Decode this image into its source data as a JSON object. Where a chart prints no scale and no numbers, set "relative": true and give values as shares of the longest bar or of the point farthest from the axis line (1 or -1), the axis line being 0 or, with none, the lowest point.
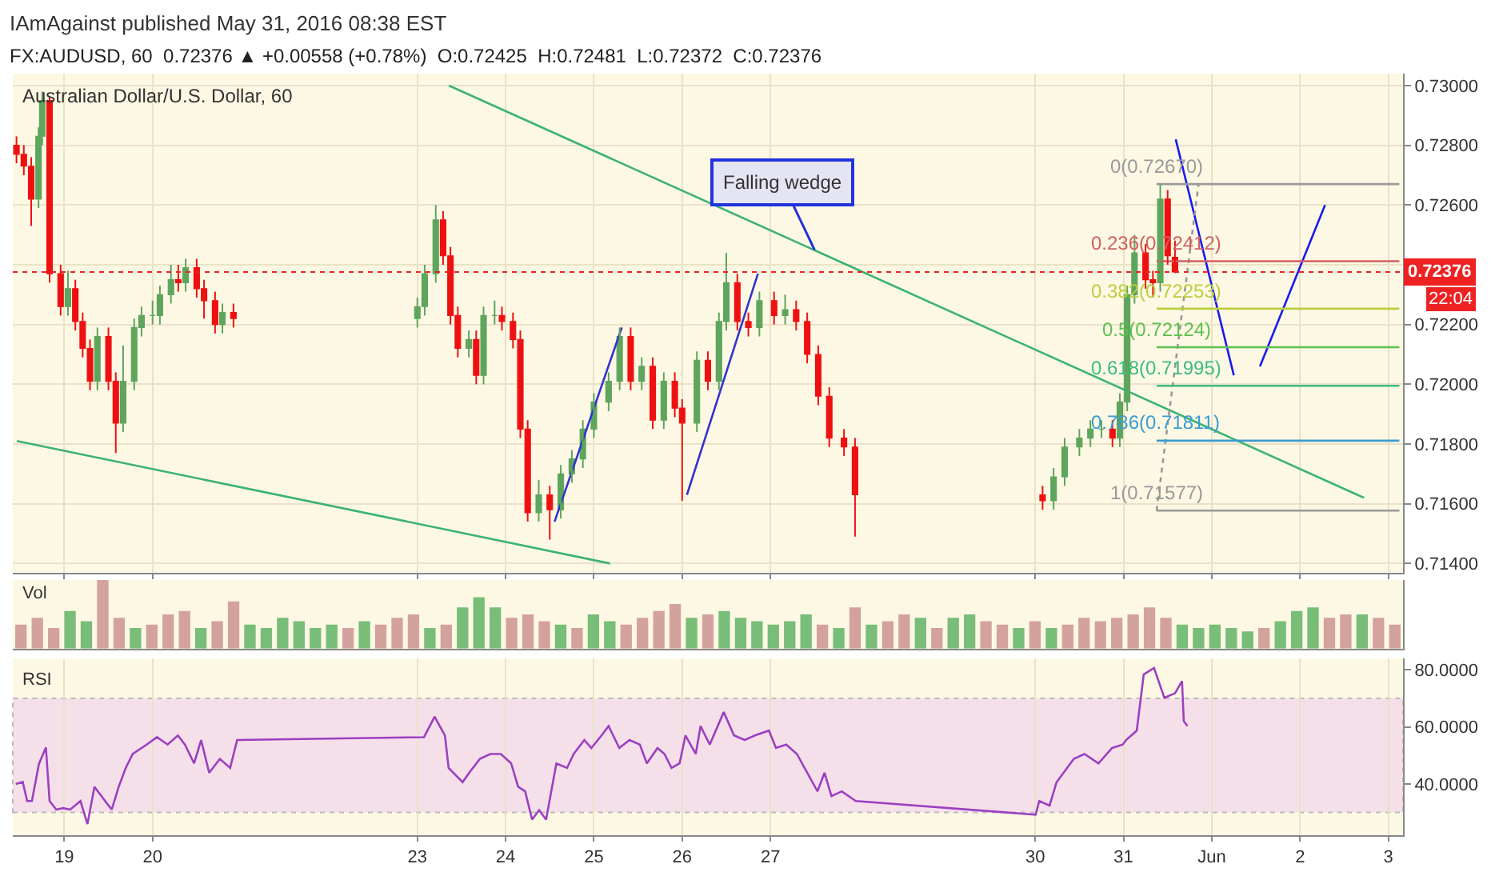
{
  "chart_data": [
    {
      "type": "candlestick",
      "title": "Australian Dollar/U.S. Dollar, 60",
      "annotations": [
        "IAmAgainst published May 31, 2016 08:38 EST",
        "FX:AUDUSD, 60  0.72376 ▲ +0.00558 (+0.78%)  O:0.72425  H:0.72481  L:0.72372  C:0.72376",
        "22:04",
        {
          "text": "Falling wedge",
          "x": "2016-05-27T12:00",
          "y": 0.7245
        }
      ],
      "x": [
        "2016-05-18T11:00",
        "2016-05-18T13:00",
        "2016-05-18T15:00",
        "2016-05-18T17:00",
        "2016-05-18T18:00",
        "2016-05-18T20:00",
        "2016-05-18T23:00",
        "2016-05-19T01:00",
        "2016-05-19T03:00",
        "2016-05-19T05:00",
        "2016-05-19T07:00",
        "2016-05-19T09:00",
        "2016-05-19T12:00",
        "2016-05-19T14:00",
        "2016-05-19T16:00",
        "2016-05-19T19:00",
        "2016-05-19T21:00",
        "2016-05-20T00:00",
        "2016-05-20T02:00",
        "2016-05-20T05:00",
        "2016-05-20T07:00",
        "2016-05-20T09:00",
        "2016-05-20T12:00",
        "2016-05-20T14:00",
        "2016-05-20T17:00",
        "2016-05-20T19:00",
        "2016-05-20T22:00",
        "2016-05-23T00:00",
        "2016-05-23T02:00",
        "2016-05-23T05:00",
        "2016-05-23T07:00",
        "2016-05-23T09:00",
        "2016-05-23T11:00",
        "2016-05-23T14:00",
        "2016-05-23T16:00",
        "2016-05-23T18:00",
        "2016-05-23T21:00",
        "2016-05-23T23:00",
        "2016-05-24T02:00",
        "2016-05-24T04:00",
        "2016-05-24T06:00",
        "2016-05-24T09:00",
        "2016-05-24T12:00",
        "2016-05-24T15:00",
        "2016-05-24T18:00",
        "2016-05-24T21:00",
        "2016-05-25T00:00",
        "2016-05-25T04:00",
        "2016-05-25T07:00",
        "2016-05-25T10:00",
        "2016-05-25T13:00",
        "2016-05-25T16:00",
        "2016-05-25T19:00",
        "2016-05-25T22:00",
        "2016-05-26T00:00",
        "2016-05-26T04:00",
        "2016-05-26T07:00",
        "2016-05-26T10:00",
        "2016-05-26T12:00",
        "2016-05-26T15:00",
        "2016-05-26T18:00",
        "2016-05-26T21:00",
        "2016-05-27T01:00",
        "2016-05-27T04:00",
        "2016-05-27T07:00",
        "2016-05-27T10:00",
        "2016-05-27T13:00",
        "2016-05-27T16:00",
        "2016-05-27T20:00",
        "2016-05-27T23:00",
        "2016-05-30T02:00",
        "2016-05-30T05:00",
        "2016-05-30T08:00",
        "2016-05-30T12:00",
        "2016-05-30T15:00",
        "2016-05-30T18:00",
        "2016-05-30T21:00",
        "2016-05-30T23:00",
        "2016-05-31T01:00",
        "2016-05-31T03:00",
        "2016-05-31T06:00",
        "2016-05-31T08:00",
        "2016-05-31T10:00",
        "2016-05-31T12:00",
        "2016-05-31T14:00"
      ],
      "ohlc": [
        [
          0.728,
          0.7283,
          0.7274,
          0.7277
        ],
        [
          0.7277,
          0.728,
          0.727,
          0.7273
        ],
        [
          0.7273,
          0.7276,
          0.7253,
          0.7262
        ],
        [
          0.7262,
          0.7286,
          0.7259,
          0.7283
        ],
        [
          0.7283,
          0.7298,
          0.728,
          0.7295
        ],
        [
          0.7295,
          0.7296,
          0.7234,
          0.7237
        ],
        [
          0.7237,
          0.724,
          0.7223,
          0.7226
        ],
        [
          0.7226,
          0.7238,
          0.7223,
          0.7232
        ],
        [
          0.7232,
          0.7235,
          0.7218,
          0.7221
        ],
        [
          0.7221,
          0.7224,
          0.7209,
          0.7212
        ],
        [
          0.7212,
          0.7215,
          0.7198,
          0.7201
        ],
        [
          0.7201,
          0.7219,
          0.7198,
          0.7216
        ],
        [
          0.7216,
          0.7219,
          0.7198,
          0.7201
        ],
        [
          0.7201,
          0.7204,
          0.7177,
          0.7187
        ],
        [
          0.7187,
          0.7213,
          0.7184,
          0.7201
        ],
        [
          0.7201,
          0.7222,
          0.7198,
          0.7219
        ],
        [
          0.7219,
          0.7226,
          0.7216,
          0.7223
        ],
        [
          0.7223,
          0.7228,
          0.722,
          0.7223
        ],
        [
          0.7223,
          0.7233,
          0.722,
          0.723
        ],
        [
          0.723,
          0.724,
          0.7227,
          0.7235
        ],
        [
          0.7235,
          0.724,
          0.7231,
          0.7234
        ],
        [
          0.7234,
          0.7242,
          0.7231,
          0.7239
        ],
        [
          0.7239,
          0.7242,
          0.7229,
          0.7232
        ],
        [
          0.7232,
          0.7235,
          0.7222,
          0.7228
        ],
        [
          0.7228,
          0.7231,
          0.7217,
          0.722
        ],
        [
          0.722,
          0.7227,
          0.7217,
          0.7224
        ],
        [
          0.7224,
          0.7227,
          0.7219,
          0.7222
        ],
        [
          0.7222,
          0.7229,
          0.7219,
          0.7226
        ],
        [
          0.7226,
          0.724,
          0.7223,
          0.7237
        ],
        [
          0.7237,
          0.726,
          0.7234,
          0.7255
        ],
        [
          0.7255,
          0.7258,
          0.724,
          0.7243
        ],
        [
          0.7243,
          0.7246,
          0.722,
          0.7223
        ],
        [
          0.7223,
          0.7226,
          0.7209,
          0.7212
        ],
        [
          0.7212,
          0.7218,
          0.7209,
          0.7215
        ],
        [
          0.7215,
          0.7218,
          0.72,
          0.7203
        ],
        [
          0.7203,
          0.7226,
          0.72,
          0.7223
        ],
        [
          0.7223,
          0.7228,
          0.722,
          0.7223
        ],
        [
          0.7223,
          0.7226,
          0.7218,
          0.7221
        ],
        [
          0.7221,
          0.7224,
          0.7212,
          0.7215
        ],
        [
          0.7215,
          0.7218,
          0.7182,
          0.7185
        ],
        [
          0.7185,
          0.7188,
          0.7154,
          0.7157
        ],
        [
          0.7157,
          0.7168,
          0.7154,
          0.7163
        ],
        [
          0.7163,
          0.7166,
          0.7148,
          0.7158
        ],
        [
          0.7158,
          0.7173,
          0.7155,
          0.717
        ],
        [
          0.717,
          0.7178,
          0.7167,
          0.7175
        ],
        [
          0.7175,
          0.7188,
          0.7172,
          0.7185
        ],
        [
          0.7185,
          0.7197,
          0.7182,
          0.7194
        ],
        [
          0.7194,
          0.7204,
          0.7191,
          0.7201
        ],
        [
          0.7201,
          0.7219,
          0.7198,
          0.7216
        ],
        [
          0.7216,
          0.7219,
          0.7198,
          0.7201
        ],
        [
          0.7201,
          0.7209,
          0.7198,
          0.7206
        ],
        [
          0.7206,
          0.7209,
          0.7185,
          0.7188
        ],
        [
          0.7188,
          0.7204,
          0.7185,
          0.7201
        ],
        [
          0.7201,
          0.7204,
          0.7189,
          0.7192
        ],
        [
          0.7192,
          0.7195,
          0.7161,
          0.7187
        ],
        [
          0.7187,
          0.7211,
          0.7184,
          0.7208
        ],
        [
          0.7208,
          0.7211,
          0.7198,
          0.7201
        ],
        [
          0.7201,
          0.7224,
          0.7198,
          0.7221
        ],
        [
          0.7221,
          0.7244,
          0.7218,
          0.7234
        ],
        [
          0.7234,
          0.7237,
          0.7218,
          0.7221
        ],
        [
          0.7221,
          0.7224,
          0.7216,
          0.7219
        ],
        [
          0.7219,
          0.7231,
          0.7216,
          0.7228
        ],
        [
          0.7228,
          0.7231,
          0.722,
          0.7223
        ],
        [
          0.7223,
          0.723,
          0.722,
          0.7225
        ],
        [
          0.7225,
          0.7228,
          0.7218,
          0.7221
        ],
        [
          0.7221,
          0.7224,
          0.7207,
          0.721
        ],
        [
          0.721,
          0.7213,
          0.7193,
          0.7196
        ],
        [
          0.7196,
          0.7199,
          0.7179,
          0.7182
        ],
        [
          0.7182,
          0.7185,
          0.7176,
          0.7179
        ],
        [
          0.7179,
          0.7182,
          0.7149,
          0.7163
        ],
        [
          0.7163,
          0.7166,
          0.7158,
          0.7161
        ],
        [
          0.7161,
          0.7172,
          0.7158,
          0.7169
        ],
        [
          0.7169,
          0.7182,
          0.7166,
          0.7179
        ],
        [
          0.7179,
          0.7185,
          0.7176,
          0.7182
        ],
        [
          0.7182,
          0.7188,
          0.7179,
          0.7185
        ],
        [
          0.7185,
          0.7188,
          0.7182,
          0.7185
        ],
        [
          0.7185,
          0.7188,
          0.7179,
          0.7182
        ],
        [
          0.7182,
          0.7197,
          0.7179,
          0.7194
        ],
        [
          0.7194,
          0.7233,
          0.7191,
          0.723
        ],
        [
          0.723,
          0.725,
          0.7227,
          0.7244
        ],
        [
          0.7244,
          0.7247,
          0.7232,
          0.7235
        ],
        [
          0.7235,
          0.7238,
          0.7229,
          0.7234
        ],
        [
          0.7234,
          0.7267,
          0.7231,
          0.7262
        ],
        [
          0.7262,
          0.7265,
          0.724,
          0.7243
        ],
        [
          0.72425,
          0.72481,
          0.72372,
          0.72376
        ]
      ],
      "series": [
        {
          "type": "line",
          "color": "#3cb371",
          "x": [
            "2016-05-23T08:36",
            "2016-06-02T17:24"
          ],
          "values": [
            0.73,
            0.7162
          ]
        },
        {
          "type": "line",
          "color": "#3cb371",
          "x": [
            "2016-05-18T11:06",
            "2016-05-25T04:24"
          ],
          "values": [
            0.7181,
            0.714
          ]
        },
        {
          "type": "line",
          "color": "#3333cc",
          "x": [
            "2016-05-24T13:18",
            "2016-05-25T07:36"
          ],
          "values": [
            0.7154,
            0.7219
          ]
        },
        {
          "type": "line",
          "color": "#3333cc",
          "x": [
            "2016-05-26T01:18",
            "2016-05-26T20:36"
          ],
          "values": [
            0.7163,
            0.7237
          ]
        },
        {
          "type": "line",
          "color": "#1a1aee",
          "x": [
            "2016-05-31T14:12",
            "2016-06-01T06:00"
          ],
          "values": [
            0.7282,
            0.7203
          ]
        },
        {
          "type": "line",
          "color": "#1a1aee",
          "x": [
            "2016-06-01T13:06",
            "2016-06-02T06:48"
          ],
          "values": [
            0.7206,
            0.726
          ]
        },
        {
          "type": "line",
          "color": "#999999",
          "line_style": "dotted",
          "x": [
            "2016-05-31T09:00",
            "2016-05-31T20:24"
          ],
          "values": [
            0.71577,
            0.7267
          ]
        },
        {
          "type": "line",
          "name": "0(0.72670)",
          "color": "#999999",
          "x": [
            "2016-05-31T09:00",
            "2016-06-03T03:00"
          ],
          "values": [
            0.7267,
            0.7267
          ]
        },
        {
          "type": "line",
          "name": "0.236(0.72412)",
          "color": "#d06060",
          "x": [
            "2016-05-31T09:00",
            "2016-06-03T03:00"
          ],
          "values": [
            0.72412,
            0.72412
          ]
        },
        {
          "type": "line",
          "name": "0.382(0.72253)",
          "color": "#b8d040",
          "x": [
            "2016-05-31T09:00",
            "2016-06-03T03:00"
          ],
          "values": [
            0.72253,
            0.72253
          ]
        },
        {
          "type": "line",
          "name": "0.5(0.72124)",
          "color": "#5cc050",
          "x": [
            "2016-05-31T09:00",
            "2016-06-03T03:00"
          ],
          "values": [
            0.72124,
            0.72124
          ]
        },
        {
          "type": "line",
          "name": "0.618(0.71995)",
          "color": "#3cbc80",
          "x": [
            "2016-05-31T09:00",
            "2016-06-03T03:00"
          ],
          "values": [
            0.71995,
            0.71995
          ]
        },
        {
          "type": "line",
          "name": "0.786(0.71811)",
          "color": "#3c9cd0",
          "x": [
            "2016-05-31T09:00",
            "2016-06-03T03:00"
          ],
          "values": [
            0.71811,
            0.71811
          ]
        },
        {
          "type": "line",
          "name": "1(0.71577)",
          "color": "#999999",
          "x": [
            "2016-05-31T09:00",
            "2016-06-03T03:00"
          ],
          "values": [
            0.71577,
            0.71577
          ]
        }
      ],
      "ref_lines": [
        {
          "axis": "y",
          "value": 0.72376,
          "label": "0.72376",
          "color": "#ee2222",
          "line_style": "dotted"
        }
      ],
      "xlim": [
        "2016-05-18T10:00",
        "2016-06-03T04:00"
      ],
      "xticks": [
        {
          "value": "2016-05-19",
          "label": null
        },
        {
          "value": "2016-05-20",
          "label": null
        },
        {
          "value": "2016-05-23",
          "label": null
        },
        {
          "value": "2016-05-24",
          "label": null
        },
        {
          "value": "2016-05-25",
          "label": null
        },
        {
          "value": "2016-05-26",
          "label": null
        },
        {
          "value": "2016-05-27",
          "label": null
        },
        {
          "value": "2016-05-30",
          "label": null
        },
        {
          "value": "2016-05-31",
          "label": null
        },
        {
          "value": "2016-06-01",
          "label": null
        },
        {
          "value": "2016-06-02",
          "label": null
        },
        {
          "value": "2016-06-03",
          "label": null
        }
      ],
      "ylim": [
        0.7137,
        0.7304
      ],
      "yticks": [
        {
          "value": 0.714,
          "label": "0.71400"
        },
        {
          "value": 0.716,
          "label": "0.71600"
        },
        {
          "value": 0.718,
          "label": "0.71800"
        },
        {
          "value": 0.72,
          "label": "0.72000"
        },
        {
          "value": 0.722,
          "label": "0.72200"
        },
        {
          "value": 0.724,
          "label": null
        },
        {
          "value": 0.726,
          "label": "0.72600"
        },
        {
          "value": 0.728,
          "label": "0.72800"
        },
        {
          "value": 0.73,
          "label": "0.73000"
        }
      ],
      "grid": true,
      "tick_labels": "y"
    },
    {
      "type": "bar",
      "title": "Vol",
      "relative": true,
      "tick_labels": false,
      "categories": [
        null,
        null,
        null,
        null,
        null,
        null,
        null,
        null,
        null,
        null,
        null,
        null,
        null,
        null,
        null,
        null,
        null,
        null,
        null,
        null,
        null,
        null,
        null,
        null,
        null,
        null,
        null,
        null,
        null,
        null,
        null,
        null,
        null,
        null,
        null,
        null,
        null,
        null,
        null,
        null,
        null,
        null,
        null,
        null,
        null,
        null,
        null,
        null,
        null,
        null,
        null,
        null,
        null,
        null,
        null,
        null,
        null,
        null,
        null,
        null,
        null,
        null,
        null,
        null,
        null,
        null,
        null,
        null,
        null,
        null,
        null,
        null,
        null,
        null,
        null,
        null,
        null,
        null,
        null,
        null,
        null,
        null,
        null,
        null,
        null
      ],
      "values": [
        0.35,
        0.45,
        0.3,
        0.55,
        0.4,
        1.0,
        0.45,
        0.3,
        0.35,
        0.5,
        0.55,
        0.3,
        0.4,
        0.69,
        0.35,
        0.3,
        0.45,
        0.4,
        0.3,
        0.35,
        0.3,
        0.4,
        0.35,
        0.45,
        0.5,
        0.3,
        0.35,
        0.6,
        0.75,
        0.6,
        0.45,
        0.5,
        0.4,
        0.35,
        0.3,
        0.5,
        0.4,
        0.35,
        0.45,
        0.55,
        0.65,
        0.45,
        0.5,
        0.55,
        0.45,
        0.4,
        0.35,
        0.4,
        0.5,
        0.35,
        0.3,
        0.6,
        0.35,
        0.4,
        0.5,
        0.45,
        0.3,
        0.45,
        0.5,
        0.4,
        0.35,
        0.3,
        0.4,
        0.3,
        0.35,
        0.45,
        0.4,
        0.45,
        0.5,
        0.6,
        0.45,
        0.35,
        0.3,
        0.35,
        0.3,
        0.25,
        0.3,
        0.4,
        0.55,
        0.6,
        0.45,
        0.5,
        0.5,
        0.45,
        0.35
      ],
      "colors": [
        "#d4a29c",
        "#d4a29c",
        "#d4a29c",
        "#78bd78",
        "#78bd78",
        "#d4a29c",
        "#d4a29c",
        "#78bd78",
        "#d4a29c",
        "#d4a29c",
        "#d4a29c",
        "#78bd78",
        "#d4a29c",
        "#d4a29c",
        "#78bd78",
        "#78bd78",
        "#78bd78",
        "#78bd78",
        "#78bd78",
        "#78bd78",
        "#d4a29c",
        "#78bd78",
        "#d4a29c",
        "#d4a29c",
        "#d4a29c",
        "#78bd78",
        "#d4a29c",
        "#78bd78",
        "#78bd78",
        "#78bd78",
        "#d4a29c",
        "#d4a29c",
        "#d4a29c",
        "#78bd78",
        "#d4a29c",
        "#78bd78",
        "#78bd78",
        "#d4a29c",
        "#d4a29c",
        "#d4a29c",
        "#d4a29c",
        "#78bd78",
        "#d4a29c",
        "#78bd78",
        "#78bd78",
        "#78bd78",
        "#78bd78",
        "#78bd78",
        "#78bd78",
        "#d4a29c",
        "#78bd78",
        "#d4a29c",
        "#78bd78",
        "#d4a29c",
        "#d4a29c",
        "#78bd78",
        "#d4a29c",
        "#78bd78",
        "#78bd78",
        "#d4a29c",
        "#d4a29c",
        "#78bd78",
        "#d4a29c",
        "#78bd78",
        "#d4a29c",
        "#d4a29c",
        "#d4a29c",
        "#d4a29c",
        "#d4a29c",
        "#d4a29c",
        "#d4a29c",
        "#78bd78",
        "#78bd78",
        "#78bd78",
        "#78bd78",
        "#78bd78",
        "#d4a29c",
        "#78bd78",
        "#78bd78",
        "#78bd78",
        "#d4a29c",
        "#d4a29c",
        "#78bd78",
        "#d4a29c",
        "#d4a29c"
      ]
    },
    {
      "type": "line",
      "title": "RSI",
      "series": [
        {
          "color": "#9c3fc0",
          "x": [
            "2016-05-18T10:48",
            "2016-05-18T12:42",
            "2016-05-18T13:54",
            "2016-05-18T15:12",
            "2016-05-18T17:06",
            "2016-05-18T19:00",
            "2016-05-18T20:00",
            "2016-05-18T21:48",
            "2016-05-18T23:42",
            "2016-05-19T01:36",
            "2016-05-19T04:24",
            "2016-05-19T06:18",
            "2016-05-19T08:12",
            "2016-05-19T11:06",
            "2016-05-19T12:54",
            "2016-05-19T14:48",
            "2016-05-19T16:42",
            "2016-05-19T18:36",
            "2016-05-19T22:24",
            "2016-05-20T01:12",
            "2016-05-20T04:06",
            "2016-05-20T06:54",
            "2016-05-20T08:48",
            "2016-05-20T11:18",
            "2016-05-20T13:12",
            "2016-05-20T15:24",
            "2016-05-20T18:18",
            "2016-05-20T21:06",
            "2016-05-20T23:00",
            "2016-05-23T01:48",
            "2016-05-23T04:42",
            "2016-05-23T07:30",
            "2016-05-23T08:30",
            "2016-05-23T12:18",
            "2016-05-23T14:06",
            "2016-05-23T17:00",
            "2016-05-23T19:48",
            "2016-05-23T22:42",
            "2016-05-24T01:30",
            "2016-05-24T03:24",
            "2016-05-24T05:18",
            "2016-05-24T07:12",
            "2016-05-24T09:06",
            "2016-05-24T11:00",
            "2016-05-24T13:48",
            "2016-05-24T16:42",
            "2016-05-24T18:30",
            "2016-05-24T21:24",
            "2016-05-24T23:18",
            "2016-05-25T02:06",
            "2016-05-25T04:00",
            "2016-05-25T06:54",
            "2016-05-25T09:42",
            "2016-05-25T12:30",
            "2016-05-25T14:24",
            "2016-05-25T17:18",
            "2016-05-25T19:12",
            "2016-05-25T21:06",
            "2016-05-25T23:18",
            "2016-05-26T00:54",
            "2016-05-26T03:42",
            "2016-05-26T05:00",
            "2016-05-26T07:30",
            "2016-05-26T11:18",
            "2016-05-26T14:06",
            "2016-05-26T17:00",
            "2016-05-26T19:48",
            "2016-05-26T23:36",
            "2016-05-27T01:30",
            "2016-05-27T04:18",
            "2016-05-27T07:12",
            "2016-05-27T10:00",
            "2016-05-27T12:48",
            "2016-05-27T14:42",
            "2016-05-27T16:36",
            "2016-05-27T19:24",
            "2016-05-27T23:12",
            "2016-05-30T00:06",
            "2016-05-30T01:06",
            "2016-05-30T03:54",
            "2016-05-30T05:48",
            "2016-05-30T07:42",
            "2016-05-30T10:30",
            "2016-05-30T13:24",
            "2016-05-30T17:12",
            "2016-05-30T20:54",
            "2016-05-30T23:48",
            "2016-05-31T00:42",
            "2016-05-31T03:36",
            "2016-05-31T05:30",
            "2016-05-31T08:18",
            "2016-05-31T11:06",
            "2016-05-31T14:00",
            "2016-05-31T15:54",
            "2016-05-31T16:24",
            "2016-05-31T17:24"
          ],
          "values": [
            40,
            40.7,
            34,
            34,
            47,
            52.8,
            34,
            31,
            31.5,
            31,
            34,
            25.9,
            39,
            34,
            31,
            39,
            45.6,
            50.5,
            53.8,
            56.4,
            53.8,
            57,
            53.8,
            47.2,
            55.4,
            43.9,
            48.8,
            45.6,
            55.4,
            56.4,
            63.6,
            57,
            45.6,
            40.6,
            43.9,
            48.8,
            50.5,
            50.5,
            47.2,
            39,
            37.4,
            27.5,
            30.8,
            27.5,
            47.2,
            45.6,
            50.5,
            55.4,
            52.6,
            57,
            60.3,
            52.6,
            55.4,
            53.8,
            47.2,
            52.6,
            50.5,
            45.6,
            47.2,
            57,
            50.5,
            60.3,
            53.8,
            65.2,
            57,
            55.4,
            57,
            58.7,
            52.6,
            53.8,
            50.5,
            43.9,
            37.4,
            43.9,
            35.7,
            37.4,
            34,
            29.2,
            34,
            32.4,
            40.6,
            43.9,
            48.8,
            50.5,
            47.2,
            52.6,
            53.8,
            55.4,
            58.7,
            78.4,
            80.7,
            70.2,
            71.8,
            76.1,
            62,
            60.3
          ]
        }
      ],
      "bands": [
        {
          "axis": "y",
          "from": 30,
          "to": 70,
          "color": "#f5e0ea"
        }
      ],
      "xlim": [
        "2016-05-18T10:00",
        "2016-06-03T04:00"
      ],
      "xticks": [
        {
          "value": "2016-05-19",
          "label": "19"
        },
        {
          "value": "2016-05-20",
          "label": "20"
        },
        {
          "value": "2016-05-23",
          "label": "23"
        },
        {
          "value": "2016-05-24",
          "label": "24"
        },
        {
          "value": "2016-05-25",
          "label": "25"
        },
        {
          "value": "2016-05-26",
          "label": "26"
        },
        {
          "value": "2016-05-27",
          "label": "27"
        },
        {
          "value": "2016-05-30",
          "label": "30"
        },
        {
          "value": "2016-05-31",
          "label": "31"
        },
        {
          "value": "2016-06-01",
          "label": "Jun"
        },
        {
          "value": "2016-06-02",
          "label": "2"
        },
        {
          "value": "2016-06-03",
          "label": "3"
        }
      ],
      "ylim": [
        22,
        84
      ],
      "yticks": [
        {
          "value": 40,
          "label": "40.0000"
        },
        {
          "value": 60,
          "label": "60.0000"
        },
        {
          "value": 80,
          "label": "80.0000"
        }
      ],
      "grid": "x"
    }
  ]
}
